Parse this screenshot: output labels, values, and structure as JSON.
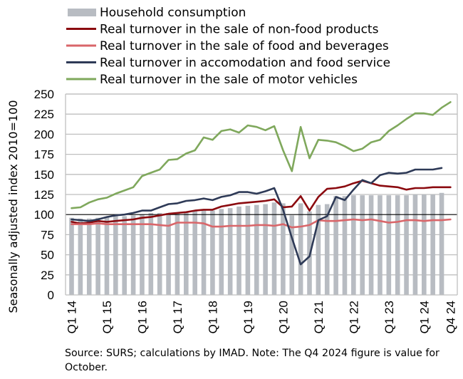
{
  "chart_data": {
    "type": "bar",
    "title": "",
    "xlabel": "",
    "ylabel": "Seasonally adjusted index 2010=100",
    "ylim": [
      0,
      250
    ],
    "yticks": [
      0,
      25,
      50,
      75,
      100,
      125,
      150,
      175,
      200,
      225,
      250
    ],
    "ytick_labels": [
      "0",
      "25",
      "50",
      "75",
      "100",
      "125",
      "150",
      "175",
      "200",
      "225",
      "250"
    ],
    "reference_line": 100,
    "grid": true,
    "legend_position": "top",
    "categories": [
      "Q1 14",
      "Q2 14",
      "Q3 14",
      "Q4 14",
      "Q1 15",
      "Q2 15",
      "Q3 15",
      "Q4 15",
      "Q1 16",
      "Q2 16",
      "Q3 16",
      "Q4 16",
      "Q1 17",
      "Q2 17",
      "Q3 17",
      "Q4 17",
      "Q1 18",
      "Q2 18",
      "Q3 18",
      "Q4 18",
      "Q1 19",
      "Q2 19",
      "Q3 19",
      "Q4 19",
      "Q1 20",
      "Q2 20",
      "Q3 20",
      "Q4 20",
      "Q1 21",
      "Q2 21",
      "Q3 21",
      "Q4 21",
      "Q1 22",
      "Q2 22",
      "Q3 22",
      "Q4 22",
      "Q1 23",
      "Q2 23",
      "Q3 23",
      "Q4 23",
      "Q1 24",
      "Q2 24",
      "Q3 24",
      "Q4 24"
    ],
    "xtick_labels": [
      {
        "index": 0,
        "label": "Q1 14"
      },
      {
        "index": 4,
        "label": "Q1 15"
      },
      {
        "index": 8,
        "label": "Q1 16"
      },
      {
        "index": 12,
        "label": "Q1 17"
      },
      {
        "index": 16,
        "label": "Q1 18"
      },
      {
        "index": 20,
        "label": "Q1 19"
      },
      {
        "index": 24,
        "label": "Q1 20"
      },
      {
        "index": 28,
        "label": "Q1 21"
      },
      {
        "index": 32,
        "label": "Q1 22"
      },
      {
        "index": 36,
        "label": "Q1 23"
      },
      {
        "index": 40,
        "label": "Q1 24"
      },
      {
        "index": 43,
        "label": "Q4 24"
      }
    ],
    "series": [
      {
        "name": "Household consumption",
        "kind": "bar",
        "color": "#b8bcc2",
        "values": [
          96,
          95,
          95,
          96,
          97,
          98,
          98,
          99,
          100,
          102,
          102,
          102,
          102,
          103,
          104,
          105,
          105,
          107,
          108,
          110,
          111,
          112,
          113,
          115,
          114,
          99,
          114,
          104,
          112,
          113,
          123,
          123,
          124,
          124,
          124,
          124,
          124,
          124,
          124,
          125,
          125,
          125,
          127,
          null
        ]
      },
      {
        "name": "Real turnover in the sale of non-food products",
        "kind": "line",
        "color": "#8b0a0f",
        "values": [
          91,
          89,
          90,
          92,
          91,
          92,
          93,
          94,
          96,
          97,
          99,
          101,
          102,
          103,
          105,
          106,
          106,
          110,
          112,
          114,
          115,
          116,
          117,
          119,
          109,
          110,
          123,
          105,
          122,
          132,
          133,
          135,
          139,
          142,
          139,
          136,
          135,
          134,
          131,
          133,
          133,
          134,
          134,
          134
        ]
      },
      {
        "name": "Real turnover in the sale of food and beverages",
        "kind": "line",
        "color": "#d9666a",
        "values": [
          88,
          88,
          88,
          89,
          88,
          88,
          88,
          88,
          88,
          88,
          87,
          86,
          90,
          90,
          90,
          89,
          85,
          85,
          86,
          86,
          86,
          87,
          87,
          86,
          88,
          84,
          85,
          87,
          93,
          92,
          92,
          93,
          94,
          93,
          94,
          92,
          90,
          91,
          93,
          93,
          92,
          93,
          93,
          94
        ]
      },
      {
        "name": "Real turnover in accomodation and food service",
        "kind": "line",
        "color": "#2e3a57",
        "values": [
          94,
          93,
          92,
          94,
          97,
          99,
          100,
          102,
          105,
          105,
          109,
          113,
          114,
          117,
          118,
          120,
          118,
          122,
          124,
          128,
          128,
          126,
          129,
          133,
          106,
          71,
          38,
          48,
          93,
          98,
          122,
          118,
          131,
          143,
          139,
          149,
          152,
          151,
          152,
          156,
          156,
          156,
          158,
          null
        ]
      },
      {
        "name": "Real turnover in the sale of motor vehicles",
        "kind": "line",
        "color": "#7fa85c",
        "values": [
          108,
          109,
          115,
          119,
          121,
          126,
          130,
          134,
          148,
          152,
          156,
          168,
          169,
          176,
          180,
          196,
          193,
          204,
          206,
          202,
          211,
          209,
          205,
          210,
          180,
          154,
          209,
          170,
          193,
          192,
          190,
          185,
          179,
          182,
          190,
          193,
          204,
          211,
          219,
          226,
          226,
          224,
          233,
          240
        ]
      }
    ]
  },
  "legend": {
    "items": [
      {
        "label": "Household consumption",
        "kind": "bar",
        "color": "#b8bcc2"
      },
      {
        "label": "Real turnover in the sale of non-food products",
        "kind": "line",
        "color": "#8b0a0f"
      },
      {
        "label": "Real turnover in the sale of food and beverages",
        "kind": "line",
        "color": "#d9666a"
      },
      {
        "label": "Real turnover in accomodation and food service",
        "kind": "line",
        "color": "#2e3a57"
      },
      {
        "label": "Real turnover in the sale of motor vehicles",
        "kind": "line",
        "color": "#7fa85c"
      }
    ]
  },
  "colors": {
    "gridline": "#bfbfbf",
    "reference_line": "#000000",
    "axis": "#bfbfbf"
  },
  "footer": {
    "source_note": "Source: SURS; calculations by IMAD. Note: The Q4 2024 figure is value for October."
  }
}
